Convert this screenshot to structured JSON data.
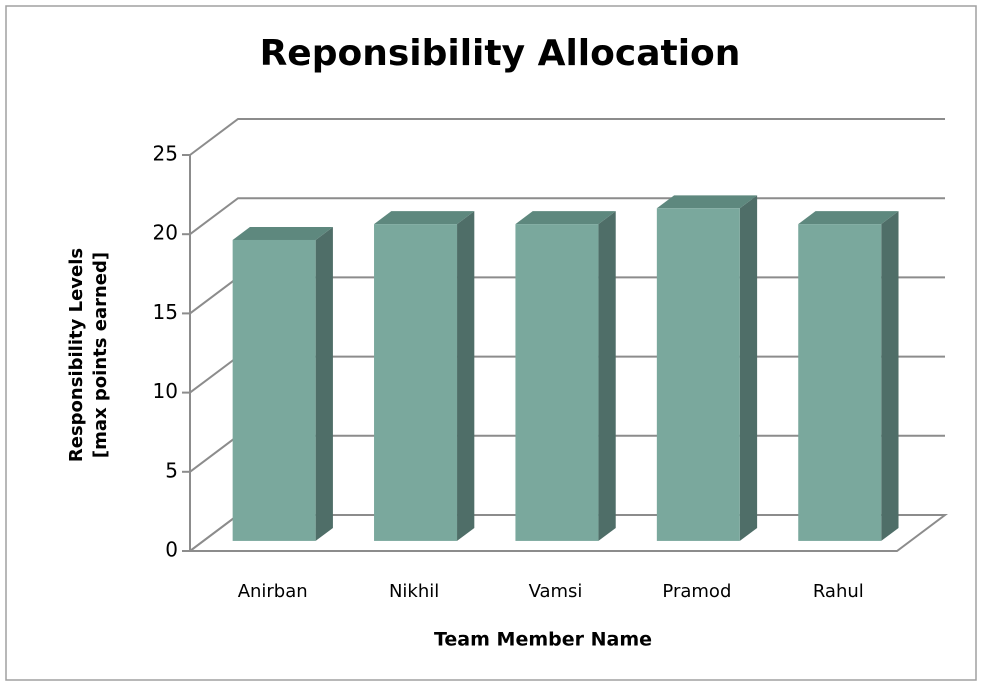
{
  "chart_data": {
    "type": "bar3d",
    "title": "Reponsibility Allocation",
    "ylabel": [
      "Responsibility Levels",
      "[max points earned]"
    ],
    "xlabel": "Team Member Name",
    "categories": [
      "Anirban",
      "Nikhil",
      "Vamsi",
      "Pramod",
      "Rahul"
    ],
    "values": [
      19,
      20,
      20,
      21,
      20
    ],
    "color": "#7aa89d",
    "ylim": [
      0,
      25
    ],
    "yticks": [
      0,
      5,
      10,
      15,
      20,
      25
    ],
    "grid": true
  }
}
